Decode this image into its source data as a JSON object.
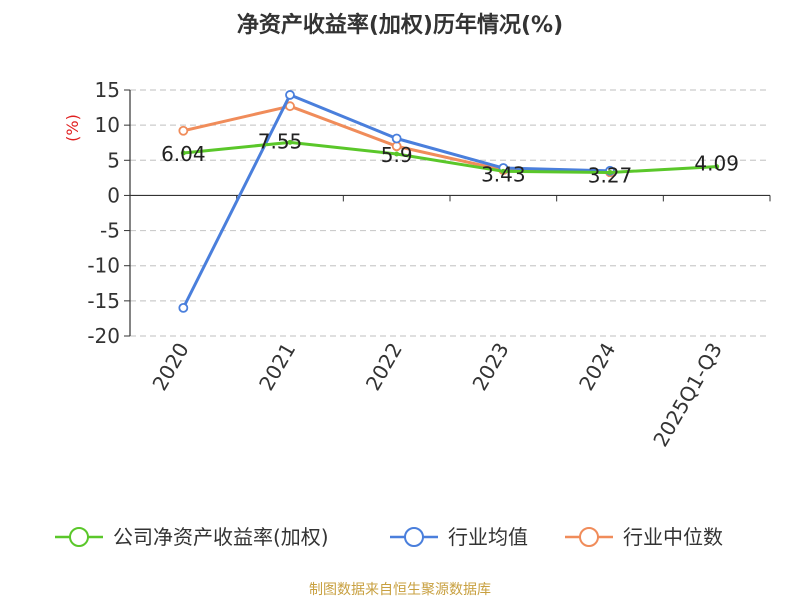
{
  "chart_data": {
    "type": "line",
    "title": "净资产收益率(加权)历年情况(%)",
    "ylabel": "(%)",
    "xlabel": "",
    "categories": [
      "2020",
      "2021",
      "2022",
      "2023",
      "2024",
      "2025Q1-Q3"
    ],
    "ylim": [
      -20,
      15
    ],
    "yticks": [
      15,
      10,
      5,
      0,
      -5,
      -10,
      -15,
      -20
    ],
    "grid": true,
    "legend_position": "bottom",
    "series": [
      {
        "name": "公司净资产收益率(加权)",
        "color": "#5ac72a",
        "values": [
          6.04,
          7.55,
          5.9,
          3.43,
          3.27,
          4.09
        ],
        "labels": [
          "6.04",
          "7.55",
          "5.9",
          "3.43",
          "3.27",
          "4.09"
        ]
      },
      {
        "name": "行业均值",
        "color": "#4a7fdc",
        "values": [
          -16.0,
          14.3,
          8.1,
          3.9,
          3.5,
          null
        ]
      },
      {
        "name": "行业中位数",
        "color": "#f08c5a",
        "values": [
          9.2,
          12.7,
          7.0,
          3.6,
          3.3,
          null
        ]
      }
    ],
    "source": "制图数据来自恒生聚源数据库"
  }
}
